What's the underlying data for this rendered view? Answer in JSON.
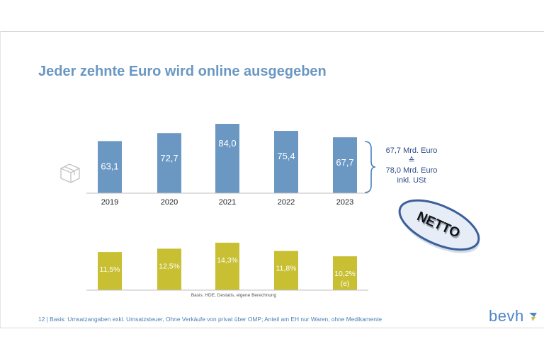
{
  "slide": {
    "title": "Jeder zehnte Euro wird online ausgegeben",
    "footer": "12  |  Basis: Umsatzangaben exkl. Umsatzsteuer, Ohne Verkäufe von privat über OMP; Anteil am EH nur Waren, ohne Medikamente",
    "logo_text": "bevh",
    "source_note": "Basis: HDE, Destatis, eigene Berechnung",
    "badge_text": "NETTO",
    "bracket_note": {
      "line1": "67,7 Mrd. Euro",
      "line2": "≙",
      "line3": "78,0 Mrd. Euro",
      "line4": "inkl. USt"
    },
    "icons": [
      "box-icon",
      "bracket-icon",
      "logo-mark-icon"
    ],
    "colors": {
      "title": "#6a97c2",
      "revenue_bar": "#6b98c3",
      "share_bar": "#c8bf33",
      "badge_fill": "#e7edf6",
      "badge_border": "#3a5f9a"
    }
  },
  "chart_data": [
    {
      "type": "bar",
      "categories": [
        "2019",
        "2020",
        "2021",
        "2022",
        "2023"
      ],
      "values": [
        63.1,
        72.7,
        84.0,
        75.4,
        67.7
      ],
      "value_labels": [
        "63,1",
        "72,7",
        "84,0",
        "75,4",
        "67,7"
      ],
      "title": "",
      "xlabel": "",
      "ylabel": "",
      "ylim": [
        0,
        84
      ],
      "grid": false
    },
    {
      "type": "bar",
      "categories": [
        "2019",
        "2020",
        "2021",
        "2022",
        "2023"
      ],
      "values": [
        11.5,
        12.5,
        14.3,
        11.8,
        10.2
      ],
      "value_labels": [
        "11,5%",
        "12,5%",
        "14,3%",
        "11,8%",
        "10,2%"
      ],
      "value_notes": [
        "",
        "",
        "",
        "",
        "(e)"
      ],
      "title": "",
      "xlabel": "",
      "ylabel": "",
      "ylim": [
        0,
        14.3
      ],
      "grid": false
    }
  ]
}
